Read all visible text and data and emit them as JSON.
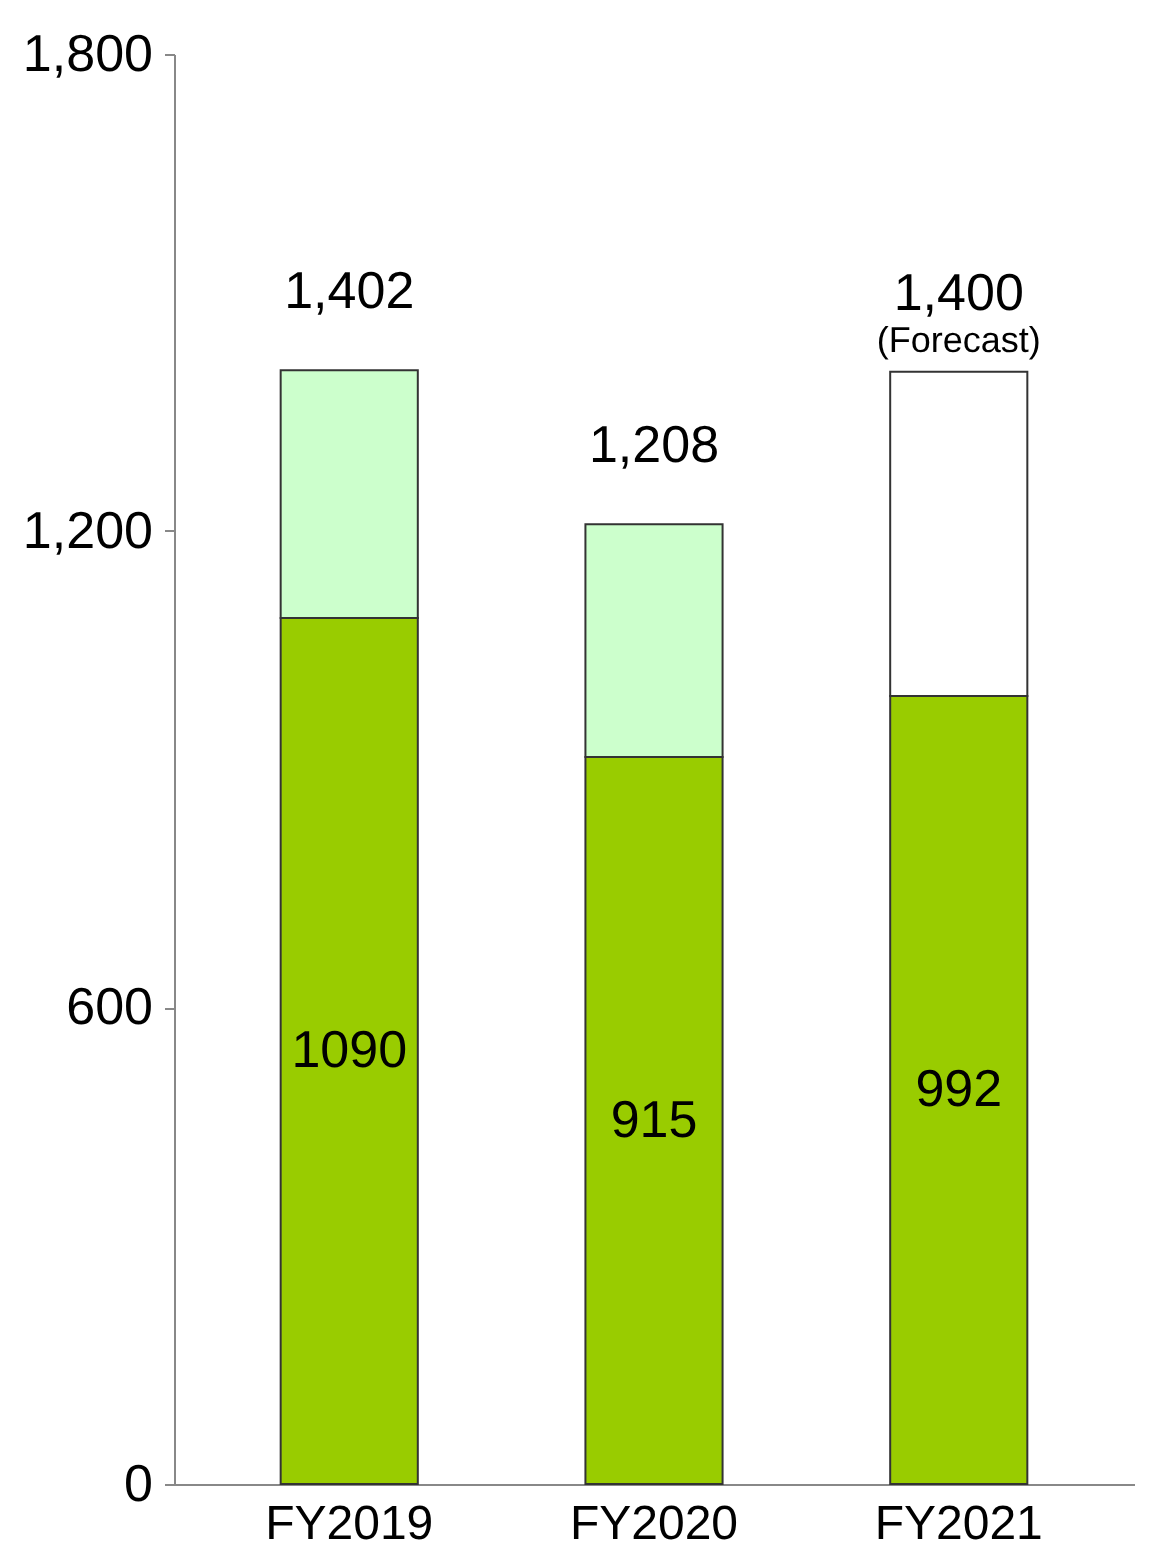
{
  "chart_data": {
    "type": "bar",
    "stacked": true,
    "categories": [
      "FY2019",
      "FY2020",
      "FY2021"
    ],
    "series": [
      {
        "color": "#99cc00",
        "values": [
          1090,
          915,
          992
        ],
        "value_labels": [
          "1090",
          "915",
          "992"
        ]
      },
      {
        "colors": [
          "#ccffcc",
          "#ccffcc",
          "#ffffff"
        ],
        "values": [
          312,
          293,
          408
        ]
      }
    ],
    "totals": [
      "1,402",
      "1,208",
      "1,400"
    ],
    "annotations": [
      {
        "text": "(Forecast)",
        "x": "FY2021",
        "y": 1400
      }
    ],
    "ylim": [
      0,
      1800
    ],
    "yticks": [
      {
        "value": 0,
        "label": "0"
      },
      {
        "value": 600,
        "label": "600"
      },
      {
        "value": 1200,
        "label": "1,200"
      },
      {
        "value": 1800,
        "label": "1,800"
      }
    ],
    "grid": false
  }
}
